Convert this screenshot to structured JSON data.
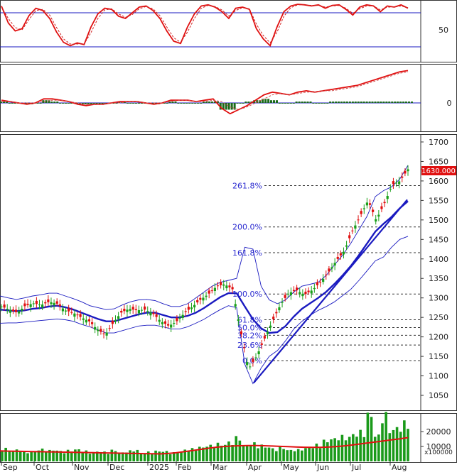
{
  "chart_data": [
    {
      "panel": "stochastic",
      "type": "line",
      "y_ticks": [
        50
      ],
      "y_range": [
        0,
        100
      ],
      "levels": [
        80,
        20
      ],
      "series": [
        {
          "role": "k",
          "color": "#e01010",
          "values": [
            92,
            62,
            48,
            52,
            75,
            88,
            84,
            70,
            46,
            28,
            22,
            27,
            24,
            55,
            78,
            88,
            86,
            74,
            70,
            80,
            90,
            92,
            84,
            70,
            48,
            30,
            26,
            55,
            78,
            92,
            94,
            90,
            82,
            70,
            88,
            90,
            86,
            52,
            34,
            22,
            55,
            82,
            92,
            95,
            94,
            92,
            94,
            88,
            93,
            94,
            86,
            76,
            90,
            94,
            92,
            82,
            92,
            90,
            94,
            88
          ]
        },
        {
          "role": "d",
          "color": "#d02020",
          "values": [
            90,
            70,
            54,
            50,
            68,
            84,
            86,
            76,
            54,
            34,
            25,
            25,
            25,
            45,
            70,
            85,
            87,
            78,
            72,
            77,
            87,
            91,
            87,
            75,
            55,
            36,
            28,
            46,
            70,
            88,
            93,
            91,
            85,
            74,
            84,
            89,
            87,
            60,
            40,
            27,
            46,
            74,
            89,
            94,
            94,
            93,
            93,
            90,
            92,
            93,
            88,
            79,
            87,
            92,
            92,
            85,
            90,
            90,
            92,
            89
          ]
        }
      ]
    },
    {
      "panel": "macd",
      "type": "line",
      "y_ticks": [
        0
      ],
      "series": [
        {
          "role": "macd",
          "color": "#e01010",
          "values": [
            2,
            1,
            0,
            -1,
            0,
            3,
            3,
            2,
            1,
            -1,
            -2,
            -1,
            -1,
            0,
            1,
            1,
            1,
            0,
            -1,
            0,
            2,
            2,
            2,
            1,
            2,
            3,
            -4,
            -8,
            -5,
            -2,
            2,
            6,
            8,
            7,
            6,
            8,
            9,
            8,
            9,
            10,
            11,
            12,
            13,
            15,
            17,
            19,
            21,
            23,
            24
          ]
        },
        {
          "role": "signal",
          "color": "#d05050",
          "values": [
            1,
            1,
            0,
            0,
            0,
            1,
            2,
            2,
            1,
            0,
            -1,
            -1,
            -1,
            0,
            0,
            1,
            1,
            0,
            0,
            0,
            1,
            2,
            2,
            1,
            1,
            2,
            1,
            -3,
            -5,
            -3,
            0,
            3,
            6,
            7,
            6,
            7,
            8,
            8,
            9,
            9,
            10,
            11,
            12,
            14,
            16,
            18,
            20,
            22,
            23
          ]
        }
      ],
      "histogram": [
        1,
        0,
        0,
        -1,
        0,
        2,
        1,
        0,
        0,
        -1,
        -1,
        0,
        0,
        0,
        1,
        0,
        0,
        0,
        -1,
        0,
        1,
        0,
        0,
        0,
        1,
        1,
        -5,
        -5,
        0,
        1,
        2,
        3,
        2,
        0,
        0,
        1,
        1,
        0,
        0,
        1,
        1,
        1,
        1,
        1,
        1,
        1,
        1,
        1,
        1
      ]
    },
    {
      "panel": "price",
      "type": "line",
      "y_ticks": [
        1050,
        1100,
        1150,
        1200,
        1250,
        1300,
        1350,
        1400,
        1450,
        1500,
        1550,
        1600,
        1650,
        1700
      ],
      "y_range": [
        1010,
        1720
      ],
      "last_price_label": "1630.000",
      "last_price": 1630,
      "fib_levels": [
        {
          "label": "261.8%",
          "value": 1588
        },
        {
          "label": "200.0%",
          "value": 1482
        },
        {
          "label": "161.8%",
          "value": 1416
        },
        {
          "label": "100.0%",
          "value": 1310
        },
        {
          "label": "61.8%",
          "value": 1244
        },
        {
          "label": "50.0%",
          "value": 1224
        },
        {
          "label": "38.2%",
          "value": 1204
        },
        {
          "label": "23.6%",
          "value": 1179
        },
        {
          "label": "0.0%",
          "value": 1139
        }
      ],
      "series": [
        {
          "role": "close",
          "color": "#1a8a1a",
          "values": [
            1278,
            1270,
            1262,
            1280,
            1286,
            1282,
            1290,
            1285,
            1268,
            1262,
            1250,
            1240,
            1220,
            1205,
            1235,
            1262,
            1272,
            1268,
            1270,
            1260,
            1240,
            1228,
            1240,
            1262,
            1278,
            1296,
            1310,
            1330,
            1335,
            1322,
            1215,
            1118,
            1150,
            1195,
            1240,
            1282,
            1312,
            1320,
            1308,
            1320,
            1340,
            1365,
            1395,
            1420,
            1470,
            1510,
            1550,
            1500,
            1540,
            1590,
            1600,
            1630
          ]
        },
        {
          "role": "ma",
          "color": "#1a1ac0",
          "values": [
            1270,
            1268,
            1266,
            1268,
            1272,
            1274,
            1278,
            1280,
            1276,
            1270,
            1262,
            1254,
            1246,
            1240,
            1240,
            1246,
            1252,
            1258,
            1262,
            1262,
            1256,
            1250,
            1250,
            1254,
            1262,
            1274,
            1288,
            1302,
            1312,
            1312,
            1278,
            1245,
            1222,
            1210,
            1212,
            1228,
            1252,
            1272,
            1286,
            1300,
            1316,
            1336,
            1358,
            1382,
            1410,
            1440,
            1470,
            1490,
            1508,
            1530,
            1548
          ]
        },
        {
          "role": "bb-upper",
          "color": "#1a1ac0",
          "values": [
            1305,
            1300,
            1296,
            1300,
            1305,
            1308,
            1312,
            1312,
            1305,
            1298,
            1290,
            1280,
            1275,
            1270,
            1272,
            1282,
            1290,
            1295,
            1296,
            1293,
            1285,
            1278,
            1278,
            1285,
            1300,
            1315,
            1330,
            1340,
            1345,
            1350,
            1430,
            1425,
            1330,
            1295,
            1285,
            1295,
            1315,
            1330,
            1335,
            1340,
            1358,
            1385,
            1410,
            1440,
            1475,
            1510,
            1560,
            1575,
            1585,
            1605,
            1640
          ]
        },
        {
          "role": "bb-lower",
          "color": "#1a1ac0",
          "values": [
            1235,
            1236,
            1236,
            1238,
            1240,
            1242,
            1244,
            1246,
            1244,
            1240,
            1232,
            1226,
            1218,
            1210,
            1210,
            1216,
            1222,
            1228,
            1230,
            1230,
            1226,
            1220,
            1220,
            1226,
            1235,
            1245,
            1258,
            1270,
            1280,
            1275,
            1130,
            1080,
            1120,
            1150,
            1165,
            1190,
            1220,
            1240,
            1255,
            1268,
            1278,
            1290,
            1306,
            1322,
            1345,
            1370,
            1395,
            1405,
            1430,
            1450,
            1458
          ]
        },
        {
          "role": "trendline",
          "color": "#1a1ac0",
          "x": [
            0,
            1
          ],
          "values": [
            1082,
            1552
          ]
        }
      ]
    },
    {
      "panel": "volume",
      "type": "bar",
      "y_ticks": [
        10000,
        20000
      ],
      "multiplier_label": "x100000",
      "y_range": [
        0,
        32000
      ],
      "volume_values": [
        8000,
        6500,
        7200,
        5800,
        6000,
        7500,
        6800,
        7000,
        6200,
        6800,
        7400,
        6400,
        5600,
        6200,
        5800,
        6900,
        5400,
        6500,
        7000,
        5200,
        5800,
        6400,
        6200,
        5400,
        6000,
        7200,
        7800,
        8800,
        9800,
        11000,
        10500,
        12000,
        14800,
        9800,
        11200,
        10000,
        9000,
        7800,
        8500,
        7000,
        7200,
        8000,
        8800,
        10500,
        12800,
        14000,
        15500,
        15000,
        17000,
        18500,
        29000,
        16000,
        29000,
        19500,
        21000,
        24000
      ],
      "ma_line": {
        "color": "#e01010",
        "values": [
          7000,
          6900,
          6800,
          6700,
          6600,
          6500,
          6400,
          6300,
          6200,
          6100,
          6000,
          5900,
          5800,
          5700,
          5600,
          5500,
          5400,
          5300,
          5200,
          5100,
          5000,
          5300,
          5800,
          6500,
          7200,
          8000,
          8800,
          9500,
          10000,
          10300,
          10500,
          10600,
          10600,
          10500,
          10300,
          10100,
          9900,
          9700,
          9500,
          9400,
          9400,
          9600,
          9900,
          10400,
          11000,
          11700,
          12400,
          13100,
          13800,
          14500,
          15200,
          16000
        ]
      },
      "x_labels": [
        "Sep",
        "Oct",
        "Nov",
        "Dec",
        "2025",
        "Feb",
        "Mar",
        "Apr",
        "May",
        "Jun",
        "Jul",
        "Aug"
      ]
    }
  ],
  "colors": {
    "up": "#1aa01a",
    "down": "#e01010",
    "line": "#1a1ac0",
    "fib": "#2a2ad0",
    "price_tag": "#e01010"
  }
}
